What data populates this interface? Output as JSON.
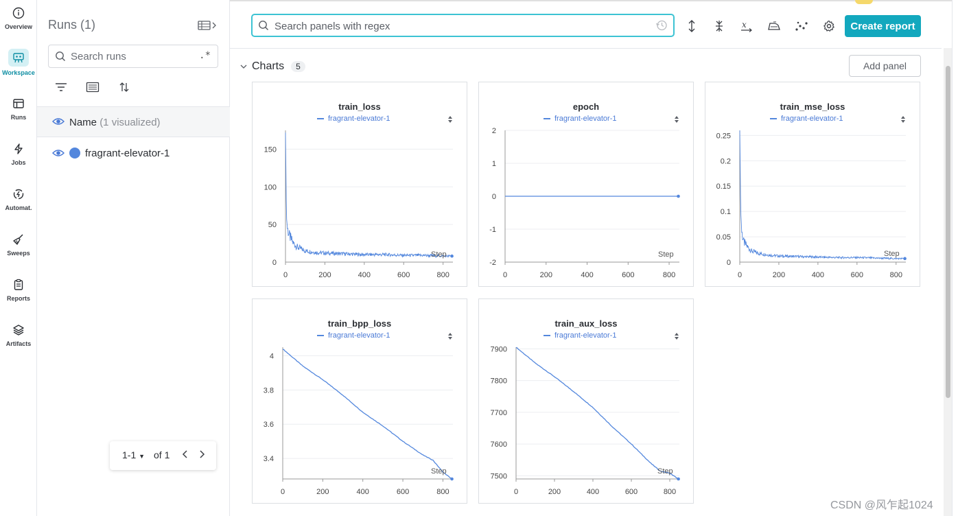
{
  "nav": {
    "items": [
      {
        "label": "Overview",
        "icon": "info-icon"
      },
      {
        "label": "Workspace",
        "icon": "workspace-icon",
        "active": true
      },
      {
        "label": "Runs",
        "icon": "table-icon"
      },
      {
        "label": "Jobs",
        "icon": "lightning-icon"
      },
      {
        "label": "Automat.",
        "icon": "automation-icon"
      },
      {
        "label": "Sweeps",
        "icon": "broom-icon"
      },
      {
        "label": "Reports",
        "icon": "clipboard-icon"
      },
      {
        "label": "Artifacts",
        "icon": "layers-icon"
      }
    ]
  },
  "runs": {
    "title": "Runs (1)",
    "search_placeholder": "Search runs",
    "regex_label": ".*",
    "header_name": "Name",
    "header_visualized": "(1 visualized)",
    "rows": [
      {
        "name": "fragrant-elevator-1",
        "color": "#5387dd"
      }
    ],
    "pager": {
      "range": "1-1",
      "of": "of 1"
    }
  },
  "main": {
    "search_placeholder": "Search panels with regex",
    "create_report": "Create report",
    "section_title": "Charts",
    "section_count": "5",
    "add_panel": "Add panel"
  },
  "colors": {
    "accent": "#13a8be",
    "series": "#5387dd"
  },
  "panels": [
    {
      "title": "train_loss",
      "legend": "fragrant-elevator-1",
      "xlabel": "Step"
    },
    {
      "title": "epoch",
      "legend": "fragrant-elevator-1",
      "xlabel": "Step"
    },
    {
      "title": "train_mse_loss",
      "legend": "fragrant-elevator-1",
      "xlabel": "Step"
    },
    {
      "title": "train_bpp_loss",
      "legend": "fragrant-elevator-1",
      "xlabel": "Step"
    },
    {
      "title": "train_aux_loss",
      "legend": "fragrant-elevator-1",
      "xlabel": "Step"
    }
  ],
  "chart_data": [
    {
      "type": "line",
      "title": "train_loss",
      "xlabel": "Step",
      "ylabel": "",
      "xlim": [
        0,
        850
      ],
      "ylim": [
        0,
        175
      ],
      "xticks": [
        0,
        200,
        400,
        600,
        800
      ],
      "yticks": [
        0,
        50,
        100,
        150
      ],
      "series": [
        {
          "name": "fragrant-elevator-1",
          "x": [
            0,
            5,
            10,
            20,
            40,
            60,
            100,
            150,
            200,
            300,
            400,
            500,
            600,
            700,
            800,
            845
          ],
          "y": [
            172,
            60,
            45,
            35,
            25,
            20,
            15,
            13,
            12,
            11,
            10,
            10,
            9,
            9,
            8,
            8
          ]
        }
      ]
    },
    {
      "type": "line",
      "title": "epoch",
      "xlabel": "Step",
      "ylabel": "",
      "xlim": [
        0,
        850
      ],
      "ylim": [
        -2,
        2
      ],
      "xticks": [
        0,
        200,
        400,
        600,
        800
      ],
      "yticks": [
        -2,
        -1,
        0,
        1,
        2
      ],
      "series": [
        {
          "name": "fragrant-elevator-1",
          "x": [
            0,
            845
          ],
          "y": [
            0,
            0
          ]
        }
      ]
    },
    {
      "type": "line",
      "title": "train_mse_loss",
      "xlabel": "Step",
      "ylabel": "",
      "xlim": [
        0,
        850
      ],
      "ylim": [
        0,
        0.26
      ],
      "xticks": [
        0,
        200,
        400,
        600,
        800
      ],
      "yticks": [
        0,
        0.05,
        0.1,
        0.15,
        0.2,
        0.25
      ],
      "series": [
        {
          "name": "fragrant-elevator-1",
          "x": [
            0,
            5,
            10,
            20,
            40,
            60,
            100,
            150,
            200,
            300,
            400,
            500,
            600,
            700,
            800,
            845
          ],
          "y": [
            0.26,
            0.1,
            0.06,
            0.04,
            0.03,
            0.022,
            0.017,
            0.014,
            0.012,
            0.011,
            0.01,
            0.009,
            0.009,
            0.008,
            0.007,
            0.007
          ]
        }
      ]
    },
    {
      "type": "line",
      "title": "train_bpp_loss",
      "xlabel": "Step",
      "ylabel": "",
      "xlim": [
        0,
        850
      ],
      "ylim": [
        3.28,
        4.05
      ],
      "xticks": [
        0,
        200,
        400,
        600,
        800
      ],
      "yticks": [
        3.4,
        3.6,
        3.8,
        4
      ],
      "series": [
        {
          "name": "fragrant-elevator-1",
          "x": [
            0,
            20,
            100,
            200,
            300,
            400,
            500,
            600,
            700,
            750,
            800,
            845
          ],
          "y": [
            4.04,
            4.02,
            3.94,
            3.86,
            3.77,
            3.67,
            3.59,
            3.5,
            3.42,
            3.39,
            3.32,
            3.28
          ]
        }
      ]
    },
    {
      "type": "line",
      "title": "train_aux_loss",
      "xlabel": "Step",
      "ylabel": "",
      "xlim": [
        0,
        850
      ],
      "ylim": [
        7490,
        7905
      ],
      "xticks": [
        0,
        200,
        400,
        600,
        800
      ],
      "yticks": [
        7500,
        7600,
        7700,
        7800,
        7900
      ],
      "series": [
        {
          "name": "fragrant-elevator-1",
          "x": [
            0,
            20,
            100,
            200,
            300,
            400,
            500,
            600,
            700,
            750,
            800,
            845
          ],
          "y": [
            7905,
            7895,
            7855,
            7812,
            7765,
            7715,
            7655,
            7600,
            7540,
            7515,
            7508,
            7490
          ]
        }
      ]
    }
  ],
  "watermark": "CSDN @风乍起1024"
}
